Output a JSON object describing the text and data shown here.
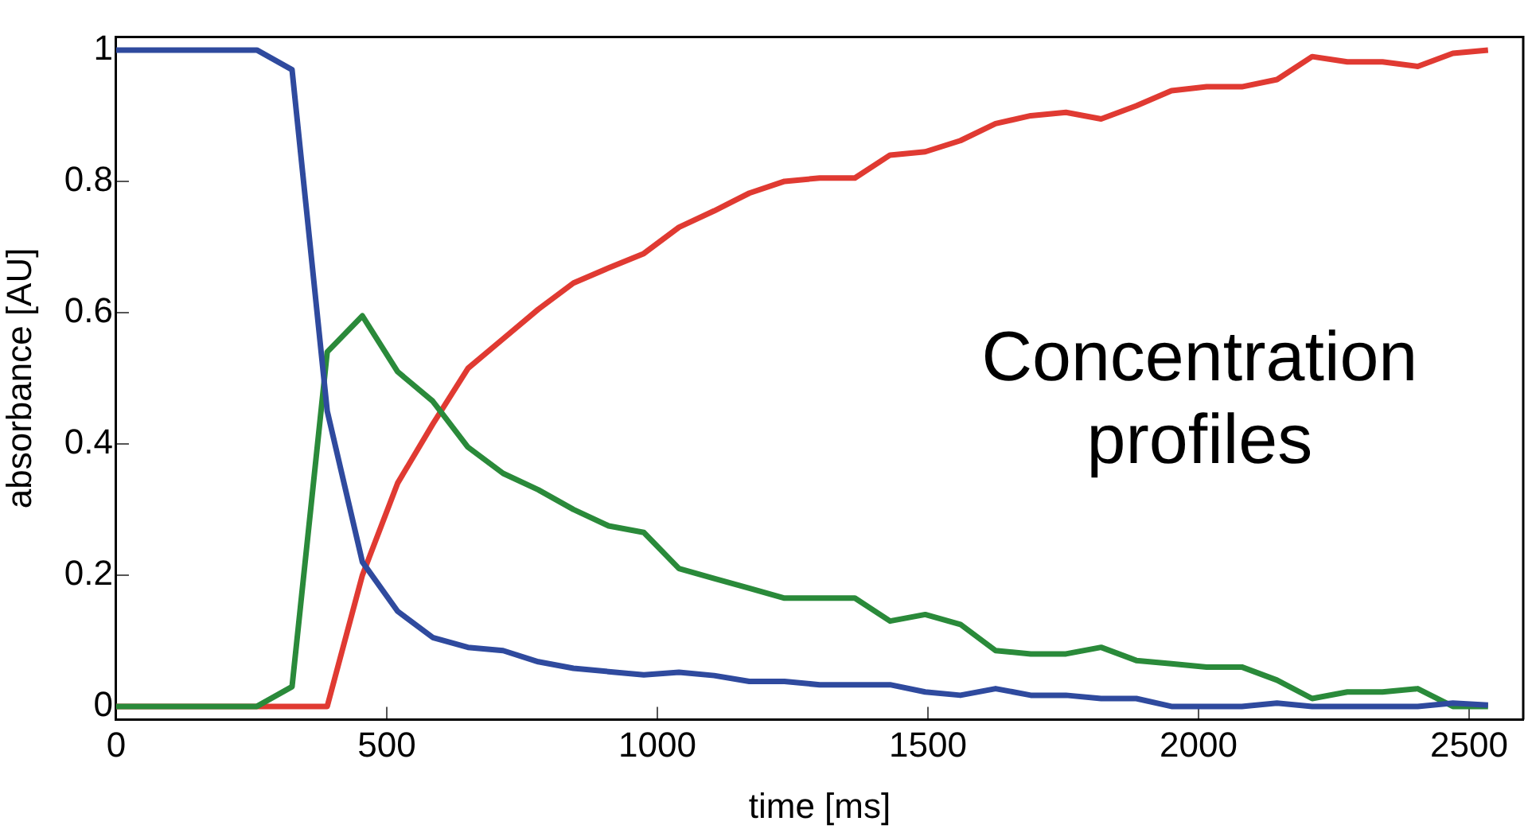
{
  "chart_data": {
    "type": "line",
    "xlabel": "time [ms]",
    "ylabel": "absorbance [AU]",
    "annotations": [
      "Concentration\nprofiles"
    ],
    "x": [
      0,
      260,
      325,
      390,
      455,
      520,
      585,
      650,
      715,
      780,
      845,
      910,
      975,
      1040,
      1105,
      1170,
      1235,
      1300,
      1365,
      1430,
      1495,
      1560,
      1625,
      1690,
      1755,
      1820,
      1885,
      1950,
      2015,
      2080,
      2145,
      2210,
      2275,
      2340,
      2405,
      2470,
      2535
    ],
    "series": [
      {
        "color": "#2f4a9e",
        "values": [
          1,
          1,
          0.97,
          0.45,
          0.22,
          0.145,
          0.105,
          0.09,
          0.085,
          0.068,
          0.058,
          0.053,
          0.048,
          0.052,
          0.047,
          0.038,
          0.038,
          0.033,
          0.033,
          0.033,
          0.022,
          0.017,
          0.027,
          0.017,
          0.017,
          0.012,
          0.012,
          0,
          0,
          0,
          0.005,
          0,
          0,
          0,
          0,
          0.005,
          0.002
        ]
      },
      {
        "color": "#2a8a3a",
        "values": [
          0,
          0,
          0.03,
          0.54,
          0.595,
          0.51,
          0.465,
          0.395,
          0.355,
          0.33,
          0.3,
          0.275,
          0.265,
          0.21,
          0.195,
          0.18,
          0.165,
          0.165,
          0.165,
          0.13,
          0.14,
          0.125,
          0.085,
          0.08,
          0.08,
          0.09,
          0.07,
          0.065,
          0.06,
          0.06,
          0.04,
          0.012,
          0.022,
          0.022,
          0.027,
          0,
          0
        ]
      },
      {
        "color": "#e03a32",
        "values": [
          0,
          0,
          0,
          0,
          0.2,
          0.34,
          0.43,
          0.515,
          0.56,
          0.605,
          0.645,
          0.668,
          0.69,
          0.73,
          0.755,
          0.782,
          0.8,
          0.805,
          0.805,
          0.84,
          0.845,
          0.862,
          0.888,
          0.9,
          0.905,
          0.895,
          0.915,
          0.938,
          0.944,
          0.944,
          0.955,
          0.99,
          0.982,
          0.982,
          0.975,
          0.995,
          1
        ]
      }
    ],
    "xlim": [
      0,
      2600
    ],
    "xticks": [
      0,
      500,
      1000,
      1500,
      2000,
      2500
    ],
    "ylim": [
      -0.02,
      1.02
    ],
    "yticks": [
      0,
      0.2,
      0.4,
      0.6,
      0.8,
      1
    ],
    "grid": false,
    "legend": false,
    "marker": "none",
    "line_style": "solid"
  }
}
